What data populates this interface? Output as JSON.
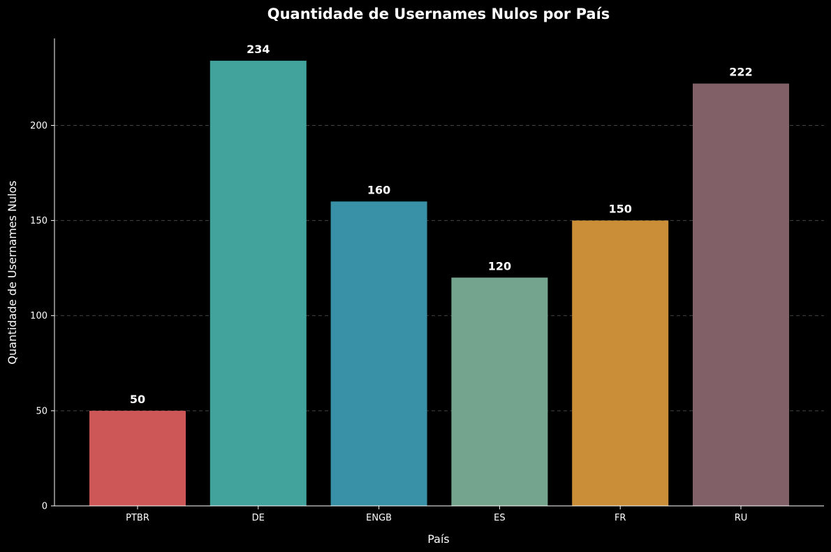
{
  "chart_data": {
    "type": "bar",
    "title": "Quantidade de Usernames Nulos por País",
    "xlabel": "País",
    "ylabel": "Quantidade de Usernames Nulos",
    "categories": [
      "PTBR",
      "DE",
      "ENGB",
      "ES",
      "FR",
      "RU"
    ],
    "values": [
      50,
      234,
      160,
      120,
      150,
      222
    ],
    "colors": [
      "#cd5656",
      "#42a39d",
      "#3891a7",
      "#74a38e",
      "#c98e37",
      "#826068"
    ],
    "yticks": [
      0,
      50,
      100,
      150,
      200
    ],
    "ylim": [
      0,
      246
    ],
    "grid": true,
    "grid_axis": "y",
    "legend": false,
    "background": "#000000",
    "text_color": "#ffffff"
  }
}
